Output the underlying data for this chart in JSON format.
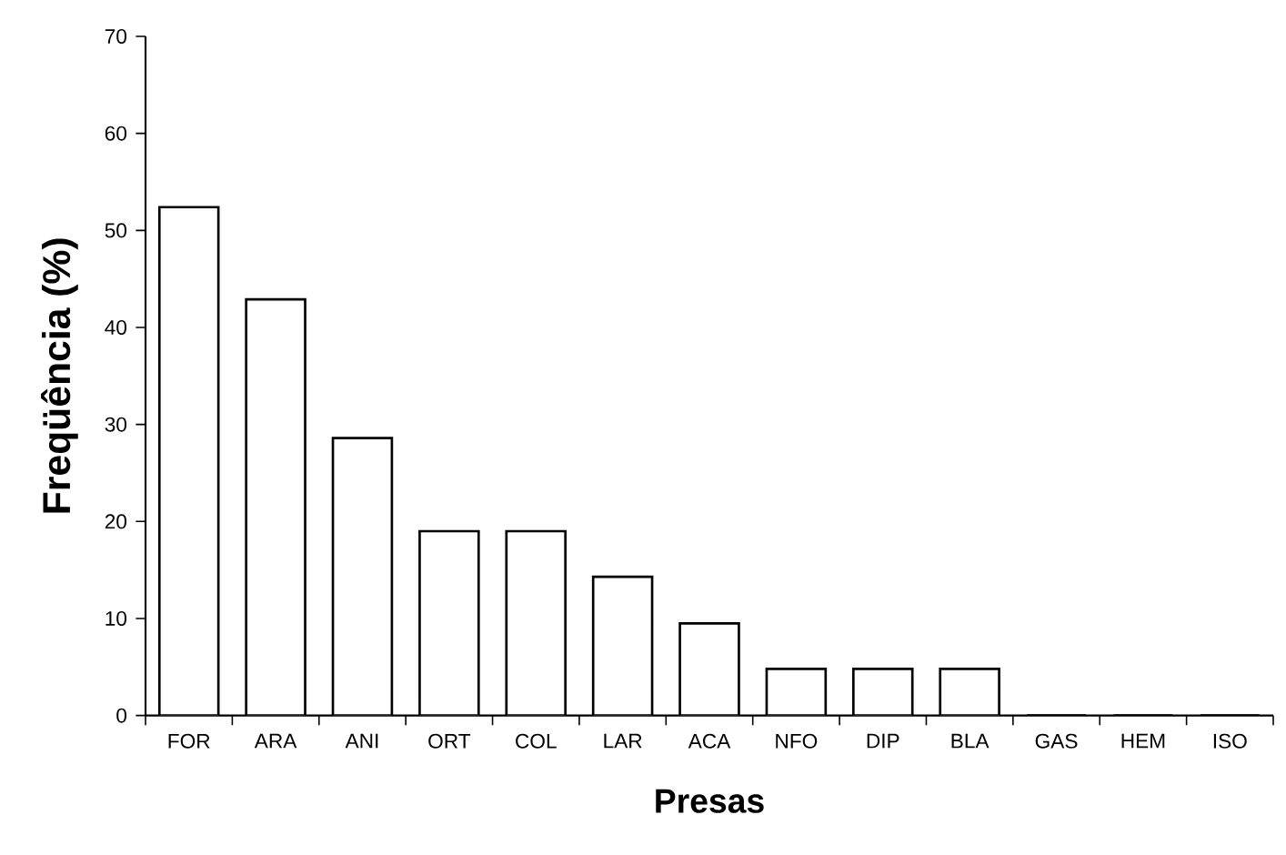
{
  "chart_data": {
    "type": "bar",
    "xlabel": "Presas",
    "ylabel": "Freqüência (%)",
    "categories": [
      "FOR",
      "ARA",
      "ANI",
      "ORT",
      "COL",
      "LAR",
      "ACA",
      "NFO",
      "DIP",
      "BLA",
      "GAS",
      "HEM",
      "ISO"
    ],
    "values": [
      52.4,
      42.9,
      28.6,
      19.0,
      19.0,
      14.3,
      9.5,
      4.8,
      4.8,
      4.8,
      0,
      0,
      0
    ],
    "color": "#ffffff",
    "ylim": [
      0,
      70
    ],
    "yticks": [
      0,
      10,
      20,
      30,
      40,
      50,
      60,
      70
    ]
  }
}
